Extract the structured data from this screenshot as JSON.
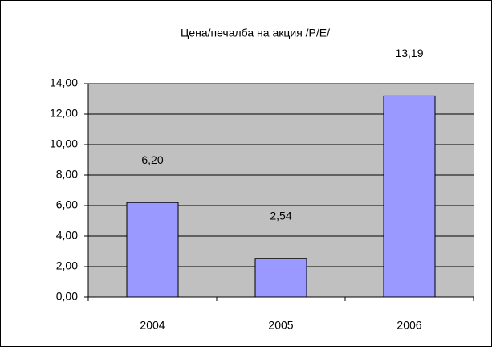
{
  "chart_data": {
    "type": "bar",
    "title": "Цена/печалба на акция /P/E/",
    "categories": [
      "2004",
      "2005",
      "2006"
    ],
    "values": [
      6.2,
      2.54,
      13.19
    ],
    "value_labels": [
      "6,20",
      "2,54",
      "13,19"
    ],
    "color": "#9999ff",
    "ylim": [
      0,
      14
    ],
    "yticks": [
      {
        "value": 0,
        "label": "0,00"
      },
      {
        "value": 2,
        "label": "2,00"
      },
      {
        "value": 4,
        "label": "4,00"
      },
      {
        "value": 6,
        "label": "6,00"
      },
      {
        "value": 8,
        "label": "8,00"
      },
      {
        "value": 10,
        "label": "10,00"
      },
      {
        "value": 12,
        "label": "12,00"
      },
      {
        "value": 14,
        "label": "14,00"
      }
    ],
    "grid": true
  }
}
